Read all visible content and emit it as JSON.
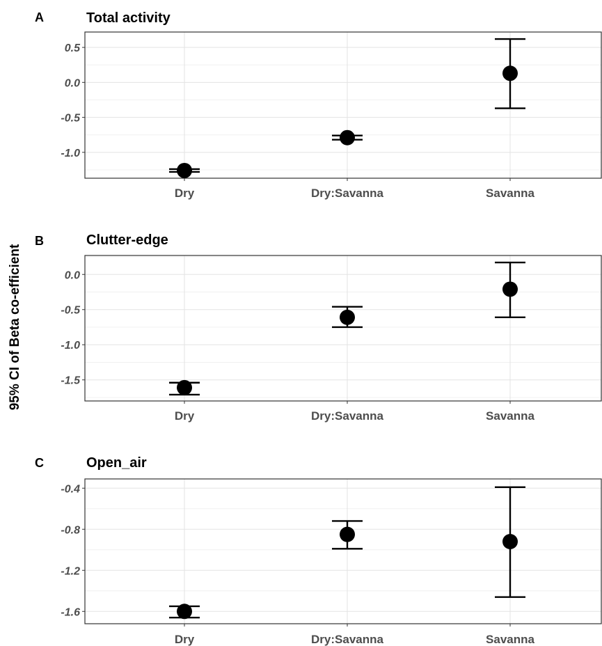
{
  "ylabel": "95% CI of Beta co-efficient",
  "chart_data": [
    {
      "type": "scatter",
      "panel": "A",
      "title": "Total activity",
      "categories": [
        "Dry",
        "Dry:Savanna",
        "Savanna"
      ],
      "values": [
        -1.26,
        -0.79,
        0.13
      ],
      "lower": [
        -1.28,
        -0.82,
        -0.37
      ],
      "upper": [
        -1.24,
        -0.76,
        0.62
      ],
      "yticks": [
        0.5,
        0.0,
        -0.5,
        -1.0
      ],
      "ytick_labels": [
        "0.5",
        "0.0",
        "-0.5",
        "-1.0"
      ],
      "ylim": [
        -1.37,
        0.72
      ],
      "grid": true
    },
    {
      "type": "scatter",
      "panel": "B",
      "title": "Clutter-edge",
      "categories": [
        "Dry",
        "Dry:Savanna",
        "Savanna"
      ],
      "values": [
        -1.61,
        -0.61,
        -0.21
      ],
      "lower": [
        -1.71,
        -0.75,
        -0.61
      ],
      "upper": [
        -1.54,
        -0.46,
        0.17
      ],
      "yticks": [
        0.0,
        -0.5,
        -1.0,
        -1.5
      ],
      "ytick_labels": [
        "0.0",
        "-0.5",
        "-1.0",
        "-1.5"
      ],
      "ylim": [
        -1.8,
        0.27
      ],
      "grid": true
    },
    {
      "type": "scatter",
      "panel": "C",
      "title": "Open_air",
      "categories": [
        "Dry",
        "Dry:Savanna",
        "Savanna"
      ],
      "values": [
        -1.6,
        -0.85,
        -0.92
      ],
      "lower": [
        -1.66,
        -0.99,
        -1.46
      ],
      "upper": [
        -1.55,
        -0.72,
        -0.39
      ],
      "yticks": [
        -0.4,
        -0.8,
        -1.2,
        -1.6
      ],
      "ytick_labels": [
        "-0.4",
        "-0.8",
        "-1.2",
        "-1.6"
      ],
      "ylim": [
        -1.72,
        -0.31
      ],
      "grid": true
    }
  ]
}
